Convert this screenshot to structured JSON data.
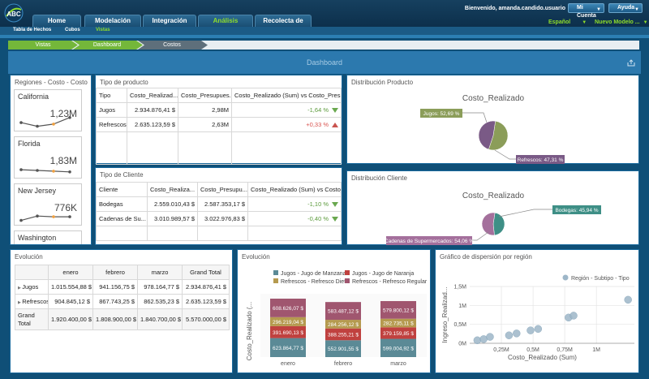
{
  "header": {
    "logo_text": "ABC",
    "nav": [
      "Home",
      "Modelación",
      "Integración",
      "Análisis",
      "Recolecta de Datos"
    ],
    "active_nav": "Análisis",
    "welcome": "Bienvenido, amanda.candido.usuario",
    "my_account": "Mi Cuenta",
    "help": "Ayuda",
    "language": "Español",
    "new_model": "Nuevo Modelo ..."
  },
  "subnav": [
    "Tabla de Hechos",
    "Cubos",
    "Vistas"
  ],
  "active_subnav": "Vistas",
  "breadcrumb": [
    "Vistas",
    "Dashboard",
    "Costos"
  ],
  "dashboard_title": "Dashboard",
  "regions": {
    "title": "Regiones - Costo - Costo",
    "cards": [
      {
        "name": "California",
        "value": "1,23M",
        "trend": [
          0.55,
          0.3,
          0.45,
          0.9
        ]
      },
      {
        "name": "Florida",
        "value": "1,83M",
        "trend": [
          0.55,
          0.5,
          0.45,
          0.4
        ]
      },
      {
        "name": "New Jersey",
        "value": "776K",
        "trend": [
          0.3,
          0.6,
          0.55,
          0.55
        ]
      },
      {
        "name": "Washington",
        "value": "",
        "trend": []
      }
    ]
  },
  "tipo_producto": {
    "title": "Tipo de producto",
    "columns": [
      "Tipo",
      "Costo_Realizad...",
      "Costo_Presupues...",
      "Costo_Realizado (Sum) vs Costo_Presu..."
    ],
    "rows": [
      {
        "tipo": "Jugos",
        "realizado": "2.934.876,41 $",
        "presupuesto": "2,98M",
        "diff": "-1,64 %",
        "trend": "down"
      },
      {
        "tipo": "Refrescos",
        "realizado": "2.635.123,59 $",
        "presupuesto": "2,63M",
        "diff": "+0,33 %",
        "trend": "up"
      }
    ]
  },
  "tipo_cliente": {
    "title": "Tipo de Cliente",
    "columns": [
      "Cliente",
      "Costo_Realiza...",
      "Costo_Presupu...",
      "Costo_Realizado (Sum) vs Costo_..."
    ],
    "rows": [
      {
        "tipo": "Bodegas",
        "realizado": "2.559.010,43 $",
        "presupuesto": "2.587.353,17 $",
        "diff": "-1,10 %",
        "trend": "down"
      },
      {
        "tipo": "Cadenas de Su...",
        "realizado": "3.010.989,57 $",
        "presupuesto": "3.022.976,83 $",
        "diff": "-0,40 %",
        "trend": "down"
      }
    ]
  },
  "dist_producto": {
    "title": "Distribución Producto",
    "chart_title": "Costo_Realizado",
    "slices": [
      {
        "label": "Jugos: 52,69 %",
        "value": 52.69,
        "color": "#8b9d59"
      },
      {
        "label": "Refrescos: 47,31 %",
        "value": 47.31,
        "color": "#7a5a86"
      }
    ]
  },
  "dist_cliente": {
    "title": "Distribución Cliente",
    "chart_title": "Costo_Realizado",
    "slices": [
      {
        "label": "Bodegas: 45,94 %",
        "value": 45.94,
        "color": "#3e8f86"
      },
      {
        "label": "Cadenas de Supermercados: 54,06 %",
        "value": 54.06,
        "color": "#a4709c"
      }
    ]
  },
  "evolucion_table": {
    "title": "Evolución",
    "columns": [
      "",
      "enero",
      "febrero",
      "marzo",
      "Grand Total"
    ],
    "rows": [
      {
        "label": "Jugos",
        "values": [
          "1.015.554,88 $",
          "941.156,75 $",
          "978.164,77 $",
          "2.934.876,41 $"
        ]
      },
      {
        "label": "Refrescos",
        "values": [
          "904.845,12 $",
          "867.743,25 $",
          "862.535,23 $",
          "2.635.123,59 $"
        ]
      }
    ],
    "total": {
      "label": "Grand Total",
      "values": [
        "1.920.400,00 $",
        "1.808.900,00 $",
        "1.840.700,00 $",
        "5.570.000,00 $"
      ]
    }
  },
  "chart_data": [
    {
      "type": "bar",
      "title": "Evolución",
      "ylabel": "Costo_Realizado (...",
      "xlabel": "",
      "categories": [
        "enero",
        "febrero",
        "marzo"
      ],
      "series": [
        {
          "name": "Jugos - Jugo de Manzana",
          "color": "#5b8a96",
          "values": [
            623864.77,
            552901.55,
            599004.92
          ],
          "labels": [
            "623.864,77 $",
            "552.901,55 $",
            "599.004,92 $"
          ]
        },
        {
          "name": "Jugos - Jugo de Naranja",
          "color": "#c0413f",
          "values": [
            391690.13,
            388255.21,
            379159.85
          ],
          "labels": [
            "391.690,13 $",
            "388.255,21 $",
            "379.159,85 $"
          ]
        },
        {
          "name": "Refrescos - Refresco Diet",
          "color": "#b59a4f",
          "values": [
            296219.04,
            284256.12,
            282735.11
          ],
          "labels": [
            "296.219,04 $",
            "284.256,12 $",
            "282.735,11 $"
          ]
        },
        {
          "name": "Refrescos - Refresco Regular",
          "color": "#a0566f",
          "values": [
            608626.07,
            583487.12,
            579800.12
          ],
          "labels": [
            "608.626,07 $",
            "583.487,12 $",
            "579.800,12 $"
          ]
        }
      ]
    },
    {
      "type": "scatter",
      "title": "Gráfico de dispersión por región",
      "legend": "Región - Subtipo - Tipo",
      "xlabel": "Costo_Realizado (Sum)",
      "ylabel": "Ingreso_Realizad...",
      "xlim": [
        0,
        1300000
      ],
      "ylim": [
        0,
        1500000
      ],
      "xticks": [
        "0,25M",
        "0,5M",
        "0,75M",
        "1M"
      ],
      "yticks": [
        "0M",
        "0,5M",
        "1M",
        "1,5M"
      ],
      "points": [
        {
          "x": 60000,
          "y": 80000
        },
        {
          "x": 110000,
          "y": 110000
        },
        {
          "x": 160000,
          "y": 170000
        },
        {
          "x": 310000,
          "y": 210000
        },
        {
          "x": 370000,
          "y": 260000
        },
        {
          "x": 480000,
          "y": 340000
        },
        {
          "x": 540000,
          "y": 380000
        },
        {
          "x": 780000,
          "y": 680000
        },
        {
          "x": 820000,
          "y": 730000
        },
        {
          "x": 1250000,
          "y": 1150000
        }
      ],
      "color": "#9db6c8"
    }
  ]
}
